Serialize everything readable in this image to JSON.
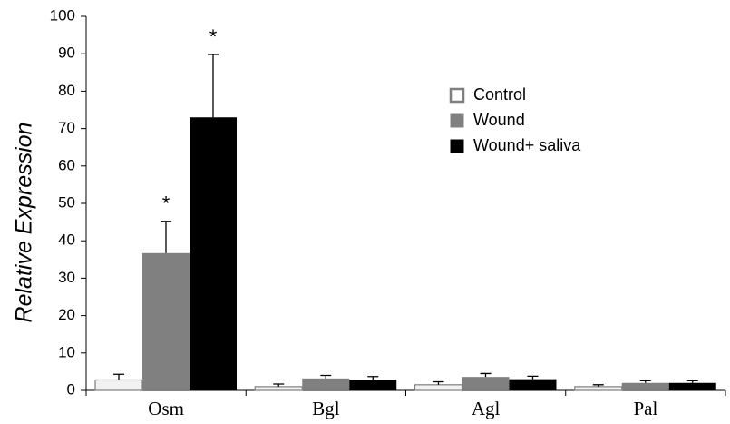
{
  "chart_data": {
    "type": "bar",
    "y_label": "Relative Expression",
    "categories": [
      "Osm",
      "Bgl",
      "Agl",
      "Pal"
    ],
    "series": [
      {
        "name": "Control",
        "color": "#f2f2f2",
        "edge": "#7f7f7f",
        "values": [
          2.8,
          1.0,
          1.5,
          1.0
        ],
        "errors": [
          1.5,
          0.7,
          0.8,
          0.5
        ]
      },
      {
        "name": "Wound",
        "color": "#808080",
        "values": [
          36.7,
          3.2,
          3.6,
          2.0
        ],
        "errors": [
          8.5,
          0.8,
          0.9,
          0.6
        ]
      },
      {
        "name": "Wound+ saliva",
        "color": "#000000",
        "values": [
          73.0,
          2.9,
          3.0,
          2.0
        ],
        "errors": [
          16.8,
          0.8,
          0.8,
          0.6
        ]
      }
    ],
    "annotations": [
      {
        "text": "*",
        "category": "Osm",
        "series": "Wound"
      },
      {
        "text": "*",
        "category": "Osm",
        "series": "Wound+ saliva"
      }
    ],
    "ylim": [
      0,
      100
    ],
    "yticks": [
      0,
      10,
      20,
      30,
      40,
      50,
      60,
      70,
      80,
      90,
      100
    ],
    "grid": false,
    "legend": "upper right"
  }
}
